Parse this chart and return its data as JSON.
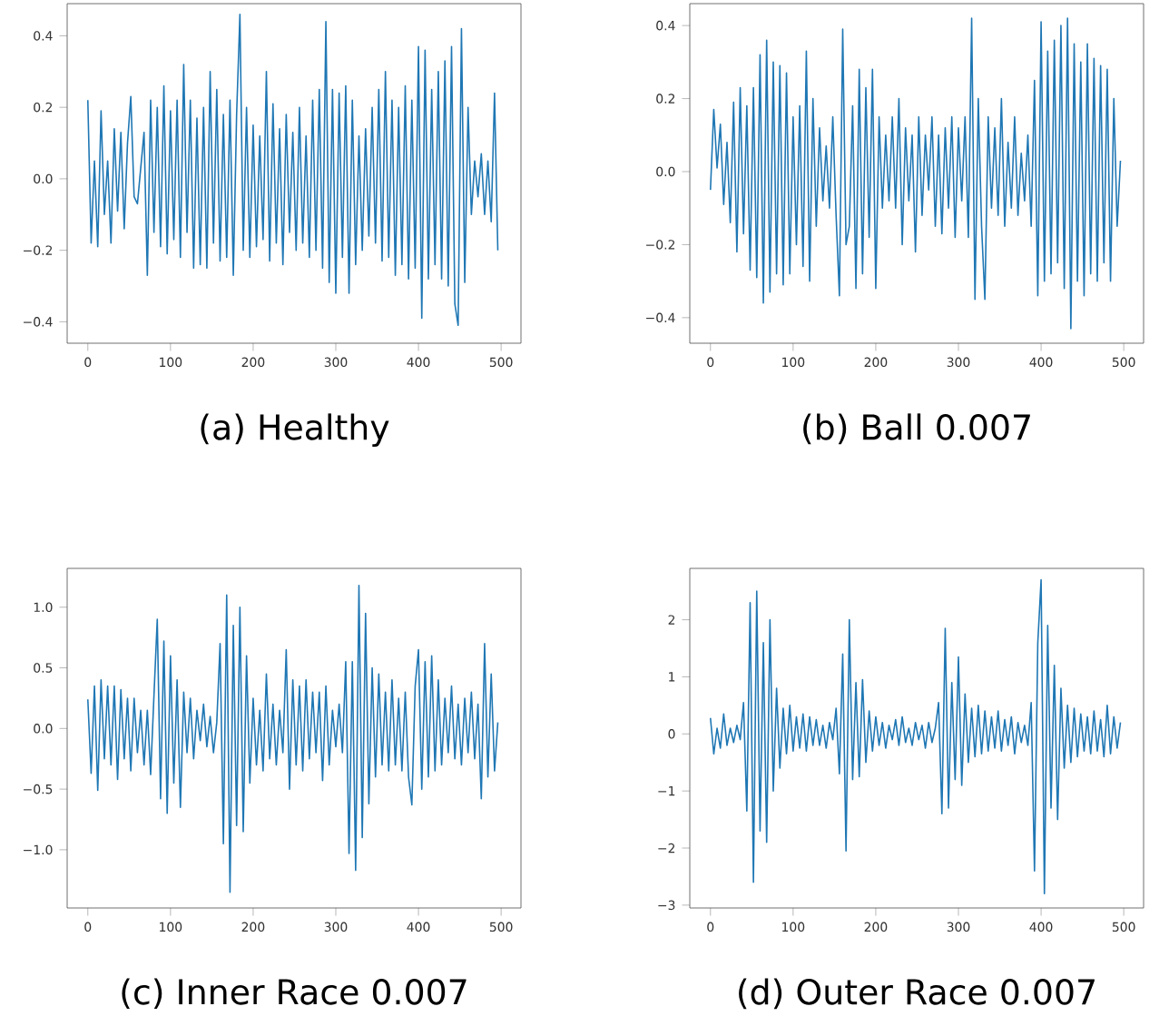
{
  "chart_data": [
    {
      "type": "line",
      "title": "(a) Healthy",
      "color": "#1f77b4",
      "xlim": [
        -25,
        524
      ],
      "ylim": [
        -0.46,
        0.49
      ],
      "xticks": [
        0,
        100,
        200,
        300,
        400,
        500
      ],
      "yticks": [
        {
          "value": -0.4,
          "label": "−0.4"
        },
        {
          "value": -0.2,
          "label": "−0.2"
        },
        {
          "value": 0,
          "label": "0.0"
        },
        0.2,
        0.4
      ],
      "x": [
        0,
        4,
        8,
        12,
        16,
        20,
        24,
        28,
        32,
        36,
        40,
        44,
        48,
        52,
        56,
        60,
        64,
        68,
        72,
        76,
        80,
        84,
        88,
        92,
        96,
        100,
        104,
        108,
        112,
        116,
        120,
        124,
        128,
        132,
        136,
        140,
        144,
        148,
        152,
        156,
        160,
        164,
        168,
        172,
        176,
        180,
        184,
        188,
        192,
        196,
        200,
        204,
        208,
        212,
        216,
        220,
        224,
        228,
        232,
        236,
        240,
        244,
        248,
        252,
        256,
        260,
        264,
        268,
        272,
        276,
        280,
        284,
        288,
        292,
        296,
        300,
        304,
        308,
        312,
        316,
        320,
        324,
        328,
        332,
        336,
        340,
        344,
        348,
        352,
        356,
        360,
        364,
        368,
        372,
        376,
        380,
        384,
        388,
        392,
        396,
        400,
        404,
        408,
        412,
        416,
        420,
        424,
        428,
        432,
        436,
        440,
        444,
        448,
        452,
        456,
        460,
        464,
        468,
        472,
        476,
        480,
        484,
        488,
        492,
        496
      ],
      "values": [
        0.22,
        -0.18,
        0.05,
        -0.19,
        0.19,
        -0.1,
        0.05,
        -0.18,
        0.14,
        -0.09,
        0.13,
        -0.14,
        0.1,
        0.23,
        -0.05,
        -0.07,
        0.03,
        0.13,
        -0.27,
        0.22,
        -0.15,
        0.2,
        -0.19,
        0.26,
        -0.21,
        0.19,
        -0.17,
        0.22,
        -0.22,
        0.32,
        -0.15,
        0.22,
        -0.25,
        0.17,
        -0.24,
        0.2,
        -0.25,
        0.3,
        -0.18,
        0.25,
        -0.23,
        0.18,
        -0.22,
        0.22,
        -0.27,
        0.18,
        0.46,
        -0.2,
        0.2,
        -0.22,
        0.15,
        -0.19,
        0.12,
        -0.17,
        0.3,
        -0.23,
        0.21,
        -0.18,
        0.14,
        -0.24,
        0.18,
        -0.15,
        0.13,
        -0.2,
        0.2,
        -0.18,
        0.12,
        -0.22,
        0.22,
        -0.2,
        0.25,
        -0.25,
        0.44,
        -0.29,
        0.25,
        -0.32,
        0.24,
        -0.22,
        0.26,
        -0.32,
        0.22,
        -0.24,
        0.12,
        -0.2,
        0.14,
        -0.16,
        0.2,
        -0.18,
        0.25,
        -0.23,
        0.3,
        -0.22,
        0.22,
        -0.27,
        0.2,
        -0.24,
        0.26,
        -0.28,
        0.22,
        -0.25,
        0.37,
        -0.39,
        0.36,
        -0.28,
        0.25,
        -0.24,
        0.3,
        -0.28,
        0.33,
        -0.3,
        0.37,
        -0.35,
        -0.41,
        0.42,
        -0.29,
        0.2,
        -0.1,
        0.05,
        -0.05,
        0.07,
        -0.1,
        0.05,
        -0.12,
        0.24,
        -0.2
      ]
    },
    {
      "type": "line",
      "title": "(b) Ball 0.007",
      "color": "#1f77b4",
      "xlim": [
        -25,
        524
      ],
      "ylim": [
        -0.47,
        0.46
      ],
      "xticks": [
        0,
        100,
        200,
        300,
        400,
        500
      ],
      "yticks": [
        {
          "value": -0.4,
          "label": "−0.4"
        },
        {
          "value": -0.2,
          "label": "−0.2"
        },
        {
          "value": 0,
          "label": "0.0"
        },
        0.2,
        0.4
      ],
      "x": [
        0,
        4,
        8,
        12,
        16,
        20,
        24,
        28,
        32,
        36,
        40,
        44,
        48,
        52,
        56,
        60,
        64,
        68,
        72,
        76,
        80,
        84,
        88,
        92,
        96,
        100,
        104,
        108,
        112,
        116,
        120,
        124,
        128,
        132,
        136,
        140,
        144,
        148,
        152,
        156,
        160,
        164,
        168,
        172,
        176,
        180,
        184,
        188,
        192,
        196,
        200,
        204,
        208,
        212,
        216,
        220,
        224,
        228,
        232,
        236,
        240,
        244,
        248,
        252,
        256,
        260,
        264,
        268,
        272,
        276,
        280,
        284,
        288,
        292,
        296,
        300,
        304,
        308,
        312,
        316,
        320,
        324,
        328,
        332,
        336,
        340,
        344,
        348,
        352,
        356,
        360,
        364,
        368,
        372,
        376,
        380,
        384,
        388,
        392,
        396,
        400,
        404,
        408,
        412,
        416,
        420,
        424,
        428,
        432,
        436,
        440,
        444,
        448,
        452,
        456,
        460,
        464,
        468,
        472,
        476,
        480,
        484,
        488,
        492,
        496
      ],
      "values": [
        -0.05,
        0.17,
        0.01,
        0.13,
        -0.09,
        0.08,
        -0.14,
        0.19,
        -0.22,
        0.23,
        -0.17,
        0.18,
        -0.27,
        0.23,
        -0.29,
        0.32,
        -0.36,
        0.36,
        -0.33,
        0.3,
        -0.28,
        0.29,
        -0.31,
        0.27,
        -0.28,
        0.15,
        -0.2,
        0.18,
        -0.26,
        0.33,
        -0.3,
        0.2,
        -0.15,
        0.12,
        -0.08,
        0.07,
        -0.1,
        0.15,
        -0.12,
        -0.34,
        0.39,
        -0.2,
        -0.15,
        0.18,
        -0.32,
        0.28,
        -0.28,
        0.23,
        -0.18,
        0.28,
        -0.32,
        0.15,
        -0.1,
        0.1,
        -0.08,
        0.15,
        -0.1,
        0.2,
        -0.2,
        0.12,
        -0.08,
        0.1,
        -0.22,
        0.15,
        -0.12,
        0.1,
        -0.05,
        0.15,
        -0.15,
        0.1,
        -0.17,
        0.12,
        -0.1,
        0.15,
        -0.18,
        0.12,
        -0.08,
        0.15,
        -0.18,
        0.42,
        -0.35,
        0.2,
        -0.15,
        -0.35,
        0.15,
        -0.1,
        0.12,
        -0.12,
        0.2,
        -0.15,
        0.08,
        -0.1,
        0.15,
        -0.12,
        0.05,
        -0.08,
        0.1,
        -0.15,
        0.25,
        -0.34,
        0.41,
        -0.3,
        0.33,
        -0.28,
        0.36,
        -0.25,
        0.4,
        -0.32,
        0.42,
        -0.43,
        0.35,
        -0.3,
        0.3,
        -0.34,
        0.35,
        -0.28,
        0.31,
        -0.3,
        0.29,
        -0.25,
        0.28,
        -0.3,
        0.2,
        -0.15,
        0.03
      ]
    },
    {
      "type": "line",
      "title": "(c) Inner Race 0.007",
      "color": "#1f77b4",
      "xlim": [
        -25,
        524
      ],
      "ylim": [
        -1.48,
        1.32
      ],
      "xticks": [
        0,
        100,
        200,
        300,
        400,
        500
      ],
      "yticks": [
        {
          "value": -1,
          "label": "−1.0"
        },
        {
          "value": -0.5,
          "label": "−0.5"
        },
        {
          "value": 0,
          "label": "0.0"
        },
        0.5,
        {
          "value": 1,
          "label": "1.0"
        }
      ],
      "x": [
        0,
        4,
        8,
        12,
        16,
        20,
        24,
        28,
        32,
        36,
        40,
        44,
        48,
        52,
        56,
        60,
        64,
        68,
        72,
        76,
        80,
        84,
        88,
        92,
        96,
        100,
        104,
        108,
        112,
        116,
        120,
        124,
        128,
        132,
        136,
        140,
        144,
        148,
        152,
        156,
        160,
        164,
        168,
        172,
        176,
        180,
        184,
        188,
        192,
        196,
        200,
        204,
        208,
        212,
        216,
        220,
        224,
        228,
        232,
        236,
        240,
        244,
        248,
        252,
        256,
        260,
        264,
        268,
        272,
        276,
        280,
        284,
        288,
        292,
        296,
        300,
        304,
        308,
        312,
        316,
        320,
        324,
        328,
        332,
        336,
        340,
        344,
        348,
        352,
        356,
        360,
        364,
        368,
        372,
        376,
        380,
        384,
        388,
        392,
        396,
        400,
        404,
        408,
        412,
        416,
        420,
        424,
        428,
        432,
        436,
        440,
        444,
        448,
        452,
        456,
        460,
        464,
        468,
        472,
        476,
        480,
        484,
        488,
        492,
        496
      ],
      "values": [
        0.24,
        -0.37,
        0.35,
        -0.51,
        0.4,
        -0.25,
        0.35,
        -0.3,
        0.35,
        -0.42,
        0.32,
        -0.25,
        0.25,
        -0.35,
        0.25,
        -0.2,
        0.15,
        -0.3,
        0.15,
        -0.38,
        0.27,
        0.9,
        -0.58,
        0.72,
        -0.7,
        0.6,
        -0.45,
        0.4,
        -0.65,
        0.3,
        -0.2,
        0.25,
        -0.25,
        0.15,
        -0.1,
        0.2,
        -0.15,
        0.1,
        -0.2,
        0.05,
        0.7,
        -0.95,
        1.1,
        -1.35,
        0.85,
        -0.8,
        1.0,
        -0.85,
        0.6,
        -0.45,
        0.25,
        -0.3,
        0.15,
        -0.35,
        0.45,
        -0.25,
        0.2,
        -0.3,
        0.15,
        -0.2,
        0.65,
        -0.5,
        0.4,
        -0.3,
        0.35,
        -0.35,
        0.4,
        -0.25,
        0.3,
        -0.2,
        0.3,
        -0.43,
        0.35,
        -0.3,
        0.15,
        -0.15,
        0.2,
        -0.2,
        0.55,
        -1.03,
        0.55,
        -1.17,
        1.18,
        -0.9,
        0.95,
        -0.62,
        0.5,
        -0.4,
        0.45,
        -0.3,
        0.3,
        -0.35,
        0.4,
        -0.3,
        0.25,
        -0.35,
        0.3,
        -0.4,
        -0.63,
        0.35,
        0.65,
        -0.5,
        0.55,
        -0.4,
        0.6,
        -0.35,
        0.4,
        -0.3,
        0.25,
        -0.2,
        0.35,
        -0.25,
        0.2,
        -0.3,
        0.25,
        -0.2,
        0.3,
        -0.25,
        0.2,
        -0.58,
        0.7,
        -0.4,
        0.45,
        -0.35,
        0.05
      ]
    },
    {
      "type": "line",
      "title": "(d) Outer Race 0.007",
      "color": "#1f77b4",
      "xlim": [
        -25,
        524
      ],
      "ylim": [
        -3.05,
        2.9
      ],
      "xticks": [
        0,
        100,
        200,
        300,
        400,
        500
      ],
      "yticks": [
        {
          "value": -3,
          "label": "−3"
        },
        {
          "value": -2,
          "label": "−2"
        },
        {
          "value": -1,
          "label": "−1"
        },
        0,
        1,
        2
      ],
      "x": [
        0,
        4,
        8,
        12,
        16,
        20,
        24,
        28,
        32,
        36,
        40,
        44,
        48,
        52,
        56,
        60,
        64,
        68,
        72,
        76,
        80,
        84,
        88,
        92,
        96,
        100,
        104,
        108,
        112,
        116,
        120,
        124,
        128,
        132,
        136,
        140,
        144,
        148,
        152,
        156,
        160,
        164,
        168,
        172,
        176,
        180,
        184,
        188,
        192,
        196,
        200,
        204,
        208,
        212,
        216,
        220,
        224,
        228,
        232,
        236,
        240,
        244,
        248,
        252,
        256,
        260,
        264,
        268,
        272,
        276,
        280,
        284,
        288,
        292,
        296,
        300,
        304,
        308,
        312,
        316,
        320,
        324,
        328,
        332,
        336,
        340,
        344,
        348,
        352,
        356,
        360,
        364,
        368,
        372,
        376,
        380,
        384,
        388,
        392,
        396,
        400,
        404,
        408,
        412,
        416,
        420,
        424,
        428,
        432,
        436,
        440,
        444,
        448,
        452,
        456,
        460,
        464,
        468,
        472,
        476,
        480,
        484,
        488,
        492,
        496
      ],
      "values": [
        0.28,
        -0.35,
        0.1,
        -0.25,
        0.35,
        -0.2,
        0.1,
        -0.15,
        0.15,
        -0.1,
        0.55,
        -1.35,
        2.3,
        -2.6,
        2.5,
        -1.7,
        1.6,
        -1.9,
        2.0,
        -1.0,
        0.8,
        -0.6,
        0.45,
        -0.35,
        0.5,
        -0.3,
        0.3,
        -0.25,
        0.35,
        -0.3,
        0.3,
        -0.2,
        0.25,
        -0.2,
        0.15,
        -0.25,
        0.2,
        -0.1,
        0.45,
        -0.7,
        1.4,
        -2.05,
        2.0,
        -0.8,
        0.9,
        -0.75,
        0.95,
        -0.5,
        0.4,
        -0.3,
        0.3,
        -0.2,
        0.2,
        -0.25,
        0.15,
        -0.1,
        0.25,
        -0.2,
        0.3,
        -0.15,
        0.1,
        -0.2,
        0.2,
        -0.1,
        0.15,
        -0.25,
        0.2,
        -0.15,
        0.1,
        0.55,
        -1.4,
        1.85,
        -1.3,
        0.9,
        -0.8,
        1.35,
        -0.9,
        0.7,
        -0.5,
        0.45,
        -0.4,
        0.5,
        -0.35,
        0.4,
        -0.3,
        0.3,
        -0.25,
        0.4,
        -0.3,
        0.25,
        -0.2,
        0.3,
        -0.35,
        0.2,
        -0.15,
        0.15,
        -0.2,
        0.55,
        -2.4,
        1.6,
        2.7,
        -2.8,
        1.9,
        -1.3,
        1.2,
        -1.5,
        0.8,
        -0.6,
        0.5,
        -0.5,
        0.45,
        -0.4,
        0.35,
        -0.3,
        0.3,
        -0.35,
        0.4,
        -0.3,
        0.25,
        -0.4,
        0.5,
        -0.35,
        0.3,
        -0.25,
        0.2
      ]
    }
  ]
}
